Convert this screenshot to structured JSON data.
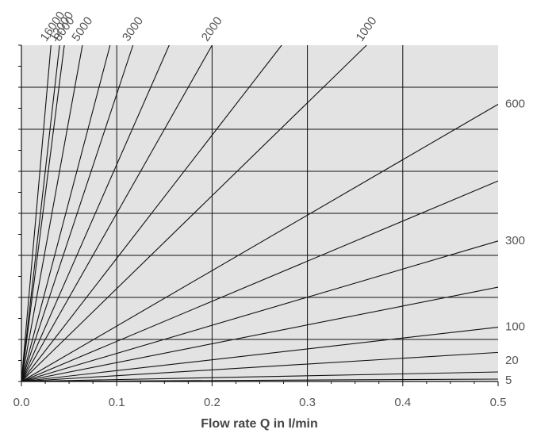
{
  "chart_data": {
    "type": "line",
    "xlabel": "Flow rate Q in l/min",
    "ylabel": "",
    "xlim": [
      0.0,
      0.5
    ],
    "x_ticks": [
      "0.0",
      "0.1",
      "0.2",
      "0.3",
      "0.4",
      "0.5"
    ],
    "y_ticks_labeled": false,
    "grid": true,
    "plot_background": "#e3e3e3",
    "line_color": "#111111",
    "series_label_color": "#555555",
    "series": [
      {
        "name": "5",
        "x": [
          0.0,
          0.5
        ],
        "y": [
          0,
          5
        ]
      },
      {
        "name": "20",
        "x": [
          0.0,
          0.5
        ],
        "y": [
          0,
          20
        ]
      },
      {
        "name": "",
        "x": [
          0.0,
          0.5
        ],
        "y": [
          0,
          61
        ]
      },
      {
        "name": "100",
        "x": [
          0.0,
          0.5
        ],
        "y": [
          0,
          114
        ]
      },
      {
        "name": "",
        "x": [
          0.0,
          0.5
        ],
        "y": [
          0,
          198
        ]
      },
      {
        "name": "300",
        "x": [
          0.0,
          0.5
        ],
        "y": [
          0,
          295
        ]
      },
      {
        "name": "",
        "x": [
          0.0,
          0.5
        ],
        "y": [
          0,
          421
        ]
      },
      {
        "name": "600",
        "x": [
          0.0,
          0.5
        ],
        "y": [
          0,
          582
        ]
      },
      {
        "name": "1000",
        "x": [
          0.0,
          0.362
        ],
        "y": [
          0,
          706
        ]
      },
      {
        "name": "",
        "x": [
          0.0,
          0.273
        ],
        "y": [
          0,
          706
        ]
      },
      {
        "name": "2000",
        "x": [
          0.0,
          0.2
        ],
        "y": [
          0,
          706
        ]
      },
      {
        "name": "",
        "x": [
          0.0,
          0.155
        ],
        "y": [
          0,
          706
        ]
      },
      {
        "name": "3000",
        "x": [
          0.0,
          0.117
        ],
        "y": [
          0,
          706
        ]
      },
      {
        "name": "",
        "x": [
          0.0,
          0.093
        ],
        "y": [
          0,
          706
        ]
      },
      {
        "name": "5000",
        "x": [
          0.0,
          0.064
        ],
        "y": [
          0,
          706
        ]
      },
      {
        "name": "8000",
        "x": [
          0.0,
          0.045
        ],
        "y": [
          0,
          706
        ]
      },
      {
        "name": "12000",
        "x": [
          0.0,
          0.04
        ],
        "y": [
          0,
          706
        ]
      },
      {
        "name": "16000",
        "x": [
          0.0,
          0.031
        ],
        "y": [
          0,
          706
        ]
      }
    ]
  }
}
